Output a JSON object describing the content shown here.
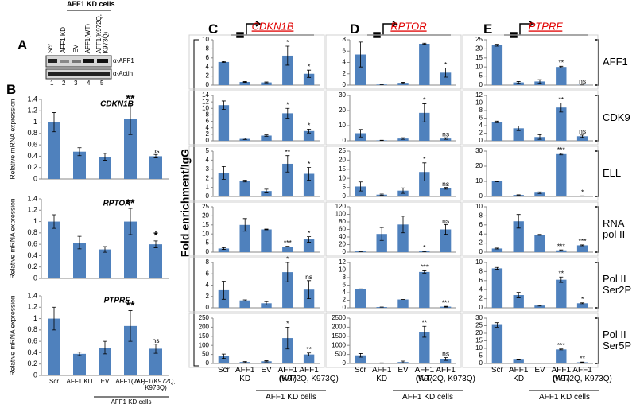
{
  "chart_data": [
    {
      "type": "bar",
      "title": "CDKN1B",
      "ylabel": "Relative mRNA expression",
      "values": [
        1.0,
        0.48,
        0.39,
        1.05,
        0.4
      ],
      "errors": [
        0.17,
        0.07,
        0.06,
        0.27,
        0.03
      ],
      "annotations": [
        null,
        null,
        null,
        "**",
        "ns"
      ],
      "color": "#4f81bd",
      "ylim": [
        0,
        1.4
      ],
      "yticks": [
        0,
        0.2,
        0.4,
        0.6,
        0.8,
        1,
        1.2,
        1.4
      ]
    },
    {
      "type": "bar",
      "title": "RPTOR",
      "ylabel": "Relative mRNA expression",
      "values": [
        1.0,
        0.63,
        0.51,
        1.0,
        0.6
      ],
      "errors": [
        0.12,
        0.11,
        0.05,
        0.23,
        0.06
      ],
      "annotations": [
        null,
        null,
        null,
        "**",
        "*"
      ],
      "color": "#4f81bd",
      "ylim": [
        0,
        1.4
      ],
      "yticks": [
        0,
        0.2,
        0.4,
        0.6,
        0.8,
        1,
        1.2,
        1.4
      ]
    },
    {
      "type": "bar",
      "title": "PTPRF",
      "ylabel": "Relative mRNA expression",
      "categories": [
        "Scr",
        "AFF1 KD",
        "EV",
        "AFF1(WT)",
        "AFF1(K972Q,\nK973Q)"
      ],
      "values": [
        1.0,
        0.38,
        0.49,
        0.87,
        0.47
      ],
      "errors": [
        0.2,
        0.03,
        0.11,
        0.27,
        0.08
      ],
      "annotations": [
        null,
        null,
        null,
        "**",
        "ns"
      ],
      "color": "#4f81bd",
      "ylim": [
        0,
        1.4
      ],
      "yticks": [
        0,
        0.2,
        0.4,
        0.6,
        0.8,
        1,
        1.2,
        1.4
      ]
    },
    {
      "type": "bar",
      "values": [
        5.1,
        0.7,
        0.6,
        6.5,
        2.5
      ],
      "errors": [
        0.1,
        0.1,
        0.1,
        2.1,
        0.8
      ],
      "annotations": [
        null,
        null,
        null,
        "*",
        "*"
      ],
      "color": "#4f81bd",
      "ylim": [
        0,
        10
      ],
      "yticks": [
        0,
        2,
        4,
        6,
        8,
        10
      ]
    },
    {
      "type": "bar",
      "values": [
        11,
        0.6,
        1.6,
        8.5,
        3
      ],
      "errors": [
        1.3,
        0.2,
        0.2,
        1.5,
        0.6
      ],
      "annotations": [
        null,
        null,
        null,
        "*",
        "*"
      ],
      "color": "#4f81bd",
      "ylim": [
        0,
        14
      ],
      "yticks": [
        0,
        2,
        4,
        6,
        8,
        10,
        12,
        14
      ]
    },
    {
      "type": "bar",
      "values": [
        2.6,
        1.7,
        0.6,
        3.6,
        2.5
      ],
      "errors": [
        0.7,
        0.1,
        0.2,
        0.9,
        0.7
      ],
      "annotations": [
        null,
        null,
        null,
        "**",
        "*"
      ],
      "color": "#4f81bd",
      "ylim": [
        0,
        5
      ],
      "yticks": [
        0,
        1,
        2,
        3,
        4,
        5
      ]
    },
    {
      "type": "bar",
      "values": [
        2,
        15,
        12.5,
        3,
        7
      ],
      "errors": [
        0.5,
        3.5,
        0.2,
        0.2,
        1.5
      ],
      "annotations": [
        null,
        null,
        null,
        "***",
        "*"
      ],
      "color": "#4f81bd",
      "ylim": [
        0,
        25
      ],
      "yticks": [
        0,
        5,
        10,
        15,
        20,
        25
      ]
    },
    {
      "type": "bar",
      "values": [
        3.1,
        1.3,
        0.8,
        6.3,
        3.2
      ],
      "errors": [
        1.6,
        0.1,
        0.3,
        1.7,
        1.6
      ],
      "annotations": [
        null,
        null,
        null,
        "*",
        "ns"
      ],
      "color": "#4f81bd",
      "ylim": [
        0,
        8
      ],
      "yticks": [
        0,
        2,
        4,
        6,
        8
      ]
    },
    {
      "type": "bar",
      "categories": [
        "Scr",
        "AFF1\nKD",
        "EV",
        "AFF1\n(WT)",
        "AFF1\n(K972Q, K973Q)"
      ],
      "values": [
        40,
        8,
        12,
        140,
        50
      ],
      "errors": [
        12,
        3,
        3,
        60,
        8
      ],
      "annotations": [
        null,
        null,
        null,
        "*",
        "**"
      ],
      "color": "#4f81bd",
      "ylim": [
        0,
        250
      ],
      "yticks": [
        0,
        50,
        100,
        150,
        200,
        250
      ]
    },
    {
      "type": "bar",
      "values": [
        5.4,
        0.1,
        0.4,
        7.3,
        2.2
      ],
      "errors": [
        2.2,
        0,
        0.1,
        0.1,
        0.8
      ],
      "annotations": [
        null,
        null,
        null,
        null,
        "*"
      ],
      "color": "#4f81bd",
      "ylim": [
        0,
        8
      ],
      "yticks": [
        0,
        2,
        4,
        6,
        8
      ]
    },
    {
      "type": "bar",
      "values": [
        5,
        0.3,
        1.5,
        18.5,
        1.5
      ],
      "errors": [
        2.5,
        0.1,
        0.5,
        6,
        0.5
      ],
      "annotations": [
        null,
        null,
        null,
        "*",
        "ns"
      ],
      "color": "#4f81bd",
      "ylim": [
        0,
        30
      ],
      "yticks": [
        0,
        10,
        20,
        30
      ]
    },
    {
      "type": "bar",
      "values": [
        5.5,
        1,
        3.2,
        13.5,
        4.5
      ],
      "errors": [
        2.5,
        0.3,
        1.5,
        5,
        0.5
      ],
      "annotations": [
        null,
        null,
        null,
        "*",
        "ns"
      ],
      "color": "#4f81bd",
      "ylim": [
        0,
        25
      ],
      "yticks": [
        0,
        5,
        10,
        15,
        20,
        25
      ]
    },
    {
      "type": "bar",
      "values": [
        2,
        48,
        73,
        2,
        60
      ],
      "errors": [
        0.5,
        17,
        22,
        1,
        13
      ],
      "annotations": [
        null,
        null,
        null,
        "*",
        "ns"
      ],
      "color": "#4f81bd",
      "ylim": [
        0,
        120
      ],
      "yticks": [
        0,
        20,
        40,
        60,
        80,
        100,
        120
      ]
    },
    {
      "type": "bar",
      "values": [
        5,
        0.2,
        2.2,
        9.5,
        0.3
      ],
      "errors": [
        0,
        0,
        0,
        0.3,
        0.1
      ],
      "annotations": [
        null,
        null,
        null,
        "***",
        "***"
      ],
      "color": "#4f81bd",
      "ylim": [
        0,
        12
      ],
      "yticks": [
        0,
        2,
        4,
        6,
        8,
        10,
        12
      ]
    },
    {
      "type": "bar",
      "categories": [
        "Scr",
        "AFF1\nKD",
        "EV",
        "AFF1\n(WT)",
        "AFF1\n(K972Q, K973Q)"
      ],
      "values": [
        450,
        20,
        80,
        1750,
        250
      ],
      "errors": [
        100,
        10,
        50,
        300,
        80
      ],
      "annotations": [
        null,
        null,
        null,
        "**",
        "ns"
      ],
      "color": "#4f81bd",
      "ylim": [
        0,
        2500
      ],
      "yticks": [
        0,
        500,
        1000,
        1500,
        2000,
        2500
      ]
    },
    {
      "type": "bar",
      "values": [
        22,
        1.5,
        2,
        10,
        0.1
      ],
      "errors": [
        0.5,
        0.5,
        1,
        0.4,
        0
      ],
      "annotations": [
        null,
        null,
        null,
        "**",
        "ns"
      ],
      "color": "#4f81bd",
      "ylim": [
        0,
        25
      ],
      "yticks": [
        0,
        5,
        10,
        15,
        20,
        25
      ]
    },
    {
      "type": "bar",
      "values": [
        5,
        3.3,
        1,
        8.8,
        1.2
      ],
      "errors": [
        0.2,
        0.6,
        0.6,
        1.2,
        0.3
      ],
      "annotations": [
        null,
        null,
        null,
        "**",
        "ns"
      ],
      "color": "#4f81bd",
      "ylim": [
        0,
        12
      ],
      "yticks": [
        0,
        2,
        4,
        6,
        8,
        10,
        12
      ]
    },
    {
      "type": "bar",
      "values": [
        10,
        1,
        2.5,
        28,
        0.3
      ],
      "errors": [
        0.3,
        0.1,
        0.5,
        0.5,
        0.1
      ],
      "annotations": [
        null,
        null,
        null,
        "***",
        "*"
      ],
      "color": "#4f81bd",
      "ylim": [
        0,
        30
      ],
      "yticks": [
        0,
        10,
        20,
        30
      ]
    },
    {
      "type": "bar",
      "values": [
        0.8,
        6.8,
        3.8,
        0.4,
        1.5
      ],
      "errors": [
        0.1,
        1.5,
        0.1,
        0.1,
        0.1
      ],
      "annotations": [
        null,
        null,
        null,
        "***",
        "***"
      ],
      "color": "#4f81bd",
      "ylim": [
        0,
        10
      ],
      "yticks": [
        0,
        2,
        4,
        6,
        8,
        10
      ]
    },
    {
      "type": "bar",
      "values": [
        8.7,
        2.8,
        0.5,
        6.2,
        1
      ],
      "errors": [
        0.2,
        0.6,
        0.1,
        0.6,
        0.1
      ],
      "annotations": [
        null,
        null,
        null,
        "**",
        "*"
      ],
      "color": "#4f81bd",
      "ylim": [
        0,
        10
      ],
      "yticks": [
        0,
        2,
        4,
        6,
        8,
        10
      ]
    },
    {
      "type": "bar",
      "categories": [
        "Scr",
        "AFF1\nKD",
        "EV",
        "AFF1\n(WT)",
        "AFF1\n(K972Q, K973Q)"
      ],
      "values": [
        25.5,
        2.5,
        0.3,
        9.3,
        0.8
      ],
      "errors": [
        1.5,
        0.2,
        0,
        0.3,
        0.2
      ],
      "annotations": [
        null,
        null,
        null,
        "***",
        "**"
      ],
      "color": "#4f81bd",
      "ylim": [
        0,
        30
      ],
      "yticks": [
        0,
        5,
        10,
        15,
        20,
        25,
        30
      ]
    }
  ],
  "figure": {
    "panel_letters": [
      "A",
      "B",
      "C",
      "D",
      "E"
    ],
    "fold_label": "Fold enrichment/IgG",
    "genes": [
      "CDKN1B",
      "RPTOR",
      "PTPRF"
    ],
    "row_labels": [
      "AFF1",
      "CDK9",
      "ELL",
      "RNA\npol II",
      "Pol II\nSer2P",
      "Pol II\nSer5P"
    ],
    "kd_cells": "AFF1 KD cells"
  },
  "panel_a": {
    "group": "AFF1 KD cells",
    "lanes": [
      "Scr",
      "AFF1 KD",
      "EV",
      "AFF1(WT)",
      "AFF1(K972Q,\nK973Q)"
    ],
    "lane_numbers": [
      1,
      2,
      3,
      4,
      5
    ],
    "bands": [
      "α-AFF1",
      "α-Actin"
    ]
  }
}
